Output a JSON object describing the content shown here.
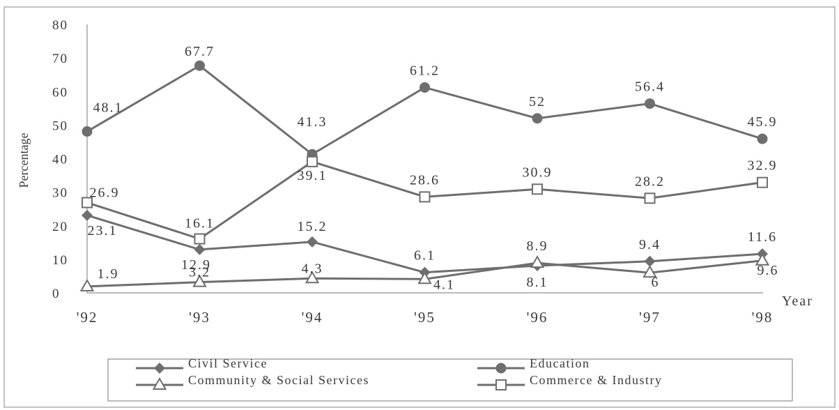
{
  "chart_data": {
    "type": "line",
    "categories": [
      "'92",
      "'93",
      "'94",
      "'95",
      "'96",
      "'97",
      "'98"
    ],
    "xlabel": "Year",
    "ylabel": "Percentage",
    "ylim": [
      0,
      80
    ],
    "yticks": [
      "0",
      "10",
      "20",
      "30",
      "40",
      "50",
      "60",
      "70",
      "80"
    ],
    "grid": false,
    "legend_position": "bottom",
    "series": [
      {
        "name": "Civil Service",
        "marker": "diamond",
        "color": "#6e6e6e",
        "values": [
          23.1,
          12.9,
          15.2,
          6.1,
          8.1,
          9.4,
          11.6
        ],
        "labels": [
          "23.1",
          "12.9",
          "15.2",
          "6.1",
          "8.1",
          "9.4",
          "11.6"
        ]
      },
      {
        "name": "Education",
        "marker": "circle",
        "color": "#6e6e6e",
        "values": [
          48.1,
          67.7,
          41.3,
          61.2,
          52,
          56.4,
          45.9
        ],
        "labels": [
          "48.1",
          "67.7",
          "41.3",
          "61.2",
          "52",
          "56.4",
          "45.9"
        ]
      },
      {
        "name": "Community & Social Services",
        "marker": "triangle",
        "color": "#6e6e6e",
        "values": [
          1.9,
          3.2,
          4.3,
          4.1,
          8.9,
          6,
          9.6
        ],
        "labels": [
          "1.9",
          "3.2",
          "4.3",
          "4.1",
          "8.9",
          "6",
          "9.6"
        ]
      },
      {
        "name": "Commerce & Industry",
        "marker": "square",
        "color": "#6e6e6e",
        "values": [
          26.9,
          16.1,
          39.1,
          28.6,
          30.9,
          28.2,
          32.9
        ],
        "labels": [
          "26.9",
          "16.1",
          "39.1",
          "28.6",
          "30.9",
          "28.2",
          "32.9"
        ]
      }
    ]
  }
}
